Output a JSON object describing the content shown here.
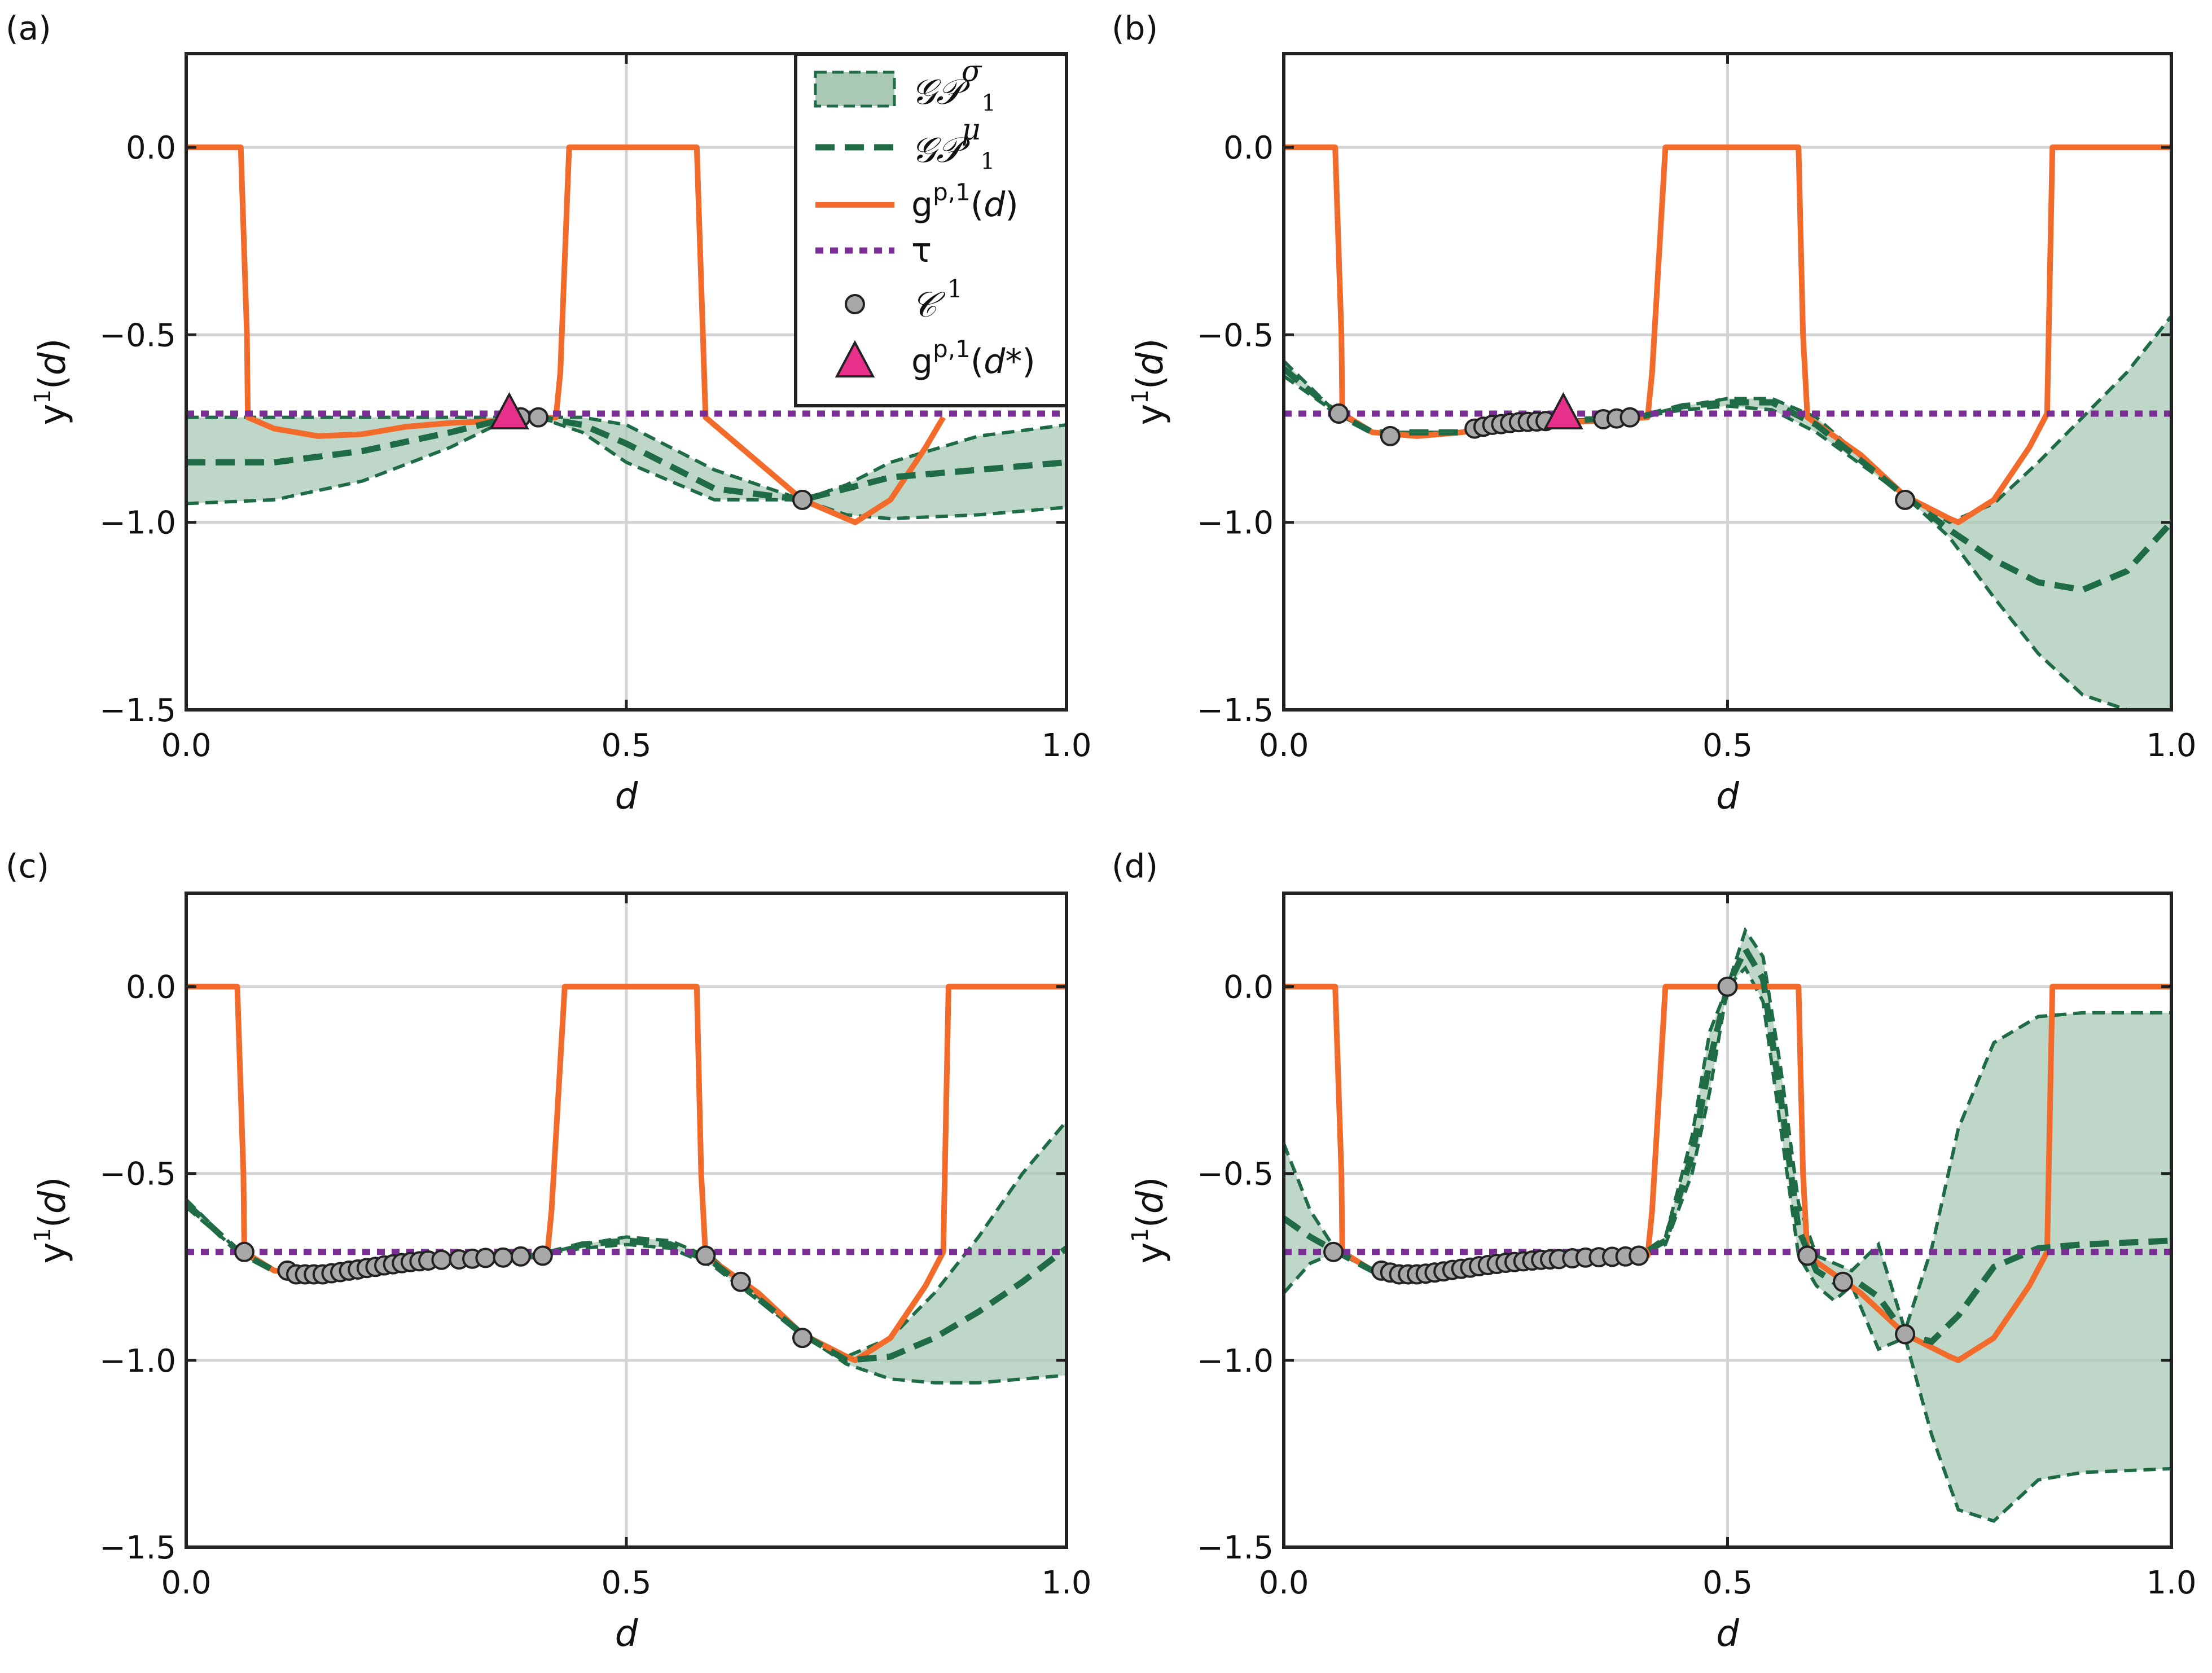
{
  "colors": {
    "band_fill": "#a9c9b6",
    "gp_line": "#1e6b46",
    "true_fn": "#f26b2a",
    "threshold": "#7b2d96",
    "points_fill": "#a8a8a8",
    "optimum_fill": "#e6308a",
    "grid": "#d3d3d3",
    "axes": "#222222"
  },
  "legend": {
    "sigma_label": "𝒢𝒫",
    "sigma_sup": "σ",
    "sigma_sub": "1",
    "mu_label": "𝒢𝒫",
    "mu_sup": "μ",
    "mu_sub": "1",
    "g_base": "g",
    "g_sup": "p,1",
    "g_arg": "(d)",
    "tau_label": "τ",
    "c_label": "𝒞",
    "c_sup": "1",
    "gstar_base": "g",
    "gstar_sup": "p,1",
    "gstar_arg": "(d*)"
  },
  "axes_text": {
    "xlabel": "d",
    "ylabel_base": "y",
    "ylabel_sup": "1",
    "ylabel_arg": "(d)",
    "xticks": [
      "0.0",
      "0.5",
      "1.0"
    ],
    "yticks": [
      "0.0",
      "-0.5",
      "-1.0",
      "-1.5"
    ]
  },
  "chart_data": [
    {
      "panel": "(a)",
      "type": "line",
      "xlim": [
        0,
        1
      ],
      "ylim": [
        -1.5,
        0.25
      ],
      "grid": true,
      "legend": "top-right",
      "true_function": {
        "x": [
          0.0,
          0.062,
          0.069,
          0.07,
          0.1,
          0.15,
          0.2,
          0.25,
          0.3,
          0.35,
          0.42,
          0.425,
          0.435,
          0.58,
          0.59,
          0.6,
          0.65,
          0.7,
          0.75,
          0.76,
          0.8,
          0.84,
          0.86
        ],
        "y": [
          0.0,
          0.0,
          -0.5,
          -0.72,
          -0.75,
          -0.77,
          -0.765,
          -0.745,
          -0.735,
          -0.73,
          -0.72,
          -0.6,
          0.0,
          0.0,
          -0.72,
          -0.74,
          -0.84,
          -0.94,
          -0.99,
          -1.0,
          -0.94,
          -0.8,
          -0.72
        ]
      },
      "threshold": -0.71,
      "gp_mean": {
        "x": [
          0.0,
          0.1,
          0.2,
          0.3,
          0.37,
          0.4,
          0.45,
          0.5,
          0.6,
          0.7,
          0.75,
          0.8,
          0.9,
          1.0
        ],
        "y": [
          -0.84,
          -0.84,
          -0.81,
          -0.76,
          -0.72,
          -0.72,
          -0.74,
          -0.79,
          -0.91,
          -0.94,
          -0.91,
          -0.88,
          -0.86,
          -0.84
        ]
      },
      "gp_upper": {
        "x": [
          0.0,
          0.1,
          0.2,
          0.3,
          0.37,
          0.4,
          0.45,
          0.5,
          0.6,
          0.7,
          0.75,
          0.8,
          0.9,
          1.0
        ],
        "y": [
          -0.72,
          -0.72,
          -0.72,
          -0.72,
          -0.72,
          -0.72,
          -0.72,
          -0.74,
          -0.86,
          -0.94,
          -0.9,
          -0.84,
          -0.77,
          -0.74
        ]
      },
      "gp_lower": {
        "x": [
          0.0,
          0.1,
          0.2,
          0.3,
          0.37,
          0.4,
          0.45,
          0.5,
          0.6,
          0.7,
          0.75,
          0.8,
          0.9,
          1.0
        ],
        "y": [
          -0.95,
          -0.94,
          -0.89,
          -0.8,
          -0.72,
          -0.72,
          -0.76,
          -0.84,
          -0.94,
          -0.94,
          -0.98,
          -0.99,
          -0.98,
          -0.96
        ]
      },
      "samples": {
        "x": [
          0.38,
          0.4,
          0.7
        ],
        "y": [
          -0.72,
          -0.72,
          -0.94
        ]
      },
      "optimum": {
        "x": 0.367,
        "y": -0.71
      }
    },
    {
      "panel": "(b)",
      "type": "line",
      "xlim": [
        0,
        1
      ],
      "ylim": [
        -1.5,
        0.25
      ],
      "grid": true,
      "true_function": {
        "x": [
          0.0,
          0.058,
          0.065,
          0.066,
          0.1,
          0.15,
          0.2,
          0.25,
          0.3,
          0.35,
          0.41,
          0.415,
          0.43,
          0.58,
          0.585,
          0.59,
          0.65,
          0.7,
          0.75,
          0.76,
          0.8,
          0.84,
          0.86,
          0.866,
          1.0
        ],
        "y": [
          0.0,
          0.0,
          -0.5,
          -0.71,
          -0.76,
          -0.77,
          -0.76,
          -0.745,
          -0.735,
          -0.73,
          -0.72,
          -0.6,
          0.0,
          0.0,
          -0.5,
          -0.72,
          -0.82,
          -0.93,
          -0.99,
          -1.0,
          -0.94,
          -0.8,
          -0.71,
          0.0,
          0.0
        ]
      },
      "threshold": -0.71,
      "gp_mean": {
        "x": [
          0.0,
          0.06,
          0.1,
          0.2,
          0.3,
          0.4,
          0.45,
          0.5,
          0.55,
          0.6,
          0.7,
          0.75,
          0.8,
          0.85,
          0.9,
          0.95,
          1.0
        ],
        "y": [
          -0.59,
          -0.71,
          -0.76,
          -0.76,
          -0.73,
          -0.72,
          -0.69,
          -0.68,
          -0.68,
          -0.74,
          -0.93,
          -1.02,
          -1.1,
          -1.16,
          -1.18,
          -1.13,
          -1.0
        ]
      },
      "gp_upper": {
        "x": [
          0.0,
          0.06,
          0.1,
          0.2,
          0.3,
          0.4,
          0.45,
          0.5,
          0.55,
          0.6,
          0.7,
          0.75,
          0.8,
          0.85,
          0.9,
          0.95,
          1.0
        ],
        "y": [
          -0.57,
          -0.71,
          -0.76,
          -0.76,
          -0.73,
          -0.72,
          -0.69,
          -0.67,
          -0.67,
          -0.72,
          -0.93,
          -1.0,
          -0.95,
          -0.84,
          -0.72,
          -0.6,
          -0.45
        ]
      },
      "gp_lower": {
        "x": [
          0.0,
          0.06,
          0.1,
          0.2,
          0.3,
          0.4,
          0.45,
          0.5,
          0.55,
          0.6,
          0.7,
          0.75,
          0.8,
          0.85,
          0.9,
          0.95,
          1.0
        ],
        "y": [
          -0.61,
          -0.71,
          -0.76,
          -0.76,
          -0.73,
          -0.72,
          -0.7,
          -0.69,
          -0.7,
          -0.76,
          -0.93,
          -1.04,
          -1.2,
          -1.35,
          -1.46,
          -1.5,
          -1.5
        ]
      },
      "samples": {
        "x": [
          0.062,
          0.12,
          0.215,
          0.225,
          0.235,
          0.245,
          0.255,
          0.265,
          0.275,
          0.285,
          0.295,
          0.36,
          0.375,
          0.39,
          0.7
        ],
        "y": [
          -0.71,
          -0.77,
          -0.75,
          -0.745,
          -0.74,
          -0.738,
          -0.735,
          -0.733,
          -0.732,
          -0.731,
          -0.73,
          -0.725,
          -0.723,
          -0.72,
          -0.94
        ]
      },
      "optimum": {
        "x": 0.315,
        "y": -0.71
      }
    },
    {
      "panel": "(c)",
      "type": "line",
      "xlim": [
        0,
        1
      ],
      "ylim": [
        -1.5,
        0.25
      ],
      "grid": true,
      "true_function": {
        "x": [
          0.0,
          0.058,
          0.065,
          0.066,
          0.1,
          0.15,
          0.2,
          0.25,
          0.3,
          0.35,
          0.41,
          0.415,
          0.43,
          0.58,
          0.585,
          0.59,
          0.65,
          0.7,
          0.75,
          0.76,
          0.8,
          0.84,
          0.86,
          0.866,
          1.0
        ],
        "y": [
          0.0,
          0.0,
          -0.5,
          -0.71,
          -0.76,
          -0.77,
          -0.76,
          -0.745,
          -0.735,
          -0.73,
          -0.72,
          -0.6,
          0.0,
          0.0,
          -0.5,
          -0.72,
          -0.82,
          -0.93,
          -0.99,
          -1.0,
          -0.94,
          -0.8,
          -0.71,
          0.0,
          0.0
        ]
      },
      "threshold": -0.71,
      "gp_mean": {
        "x": [
          0.0,
          0.06,
          0.1,
          0.2,
          0.3,
          0.4,
          0.45,
          0.5,
          0.55,
          0.6,
          0.7,
          0.75,
          0.8,
          0.85,
          0.9,
          0.95,
          1.0
        ],
        "y": [
          -0.58,
          -0.71,
          -0.76,
          -0.76,
          -0.73,
          -0.72,
          -0.69,
          -0.68,
          -0.69,
          -0.74,
          -0.93,
          -1.0,
          -0.99,
          -0.94,
          -0.87,
          -0.79,
          -0.7
        ]
      },
      "gp_upper": {
        "x": [
          0.0,
          0.06,
          0.1,
          0.2,
          0.3,
          0.4,
          0.45,
          0.5,
          0.55,
          0.6,
          0.7,
          0.75,
          0.8,
          0.85,
          0.9,
          0.95,
          1.0
        ],
        "y": [
          -0.57,
          -0.71,
          -0.76,
          -0.76,
          -0.73,
          -0.72,
          -0.69,
          -0.67,
          -0.68,
          -0.73,
          -0.93,
          -0.99,
          -0.94,
          -0.82,
          -0.67,
          -0.5,
          -0.36
        ]
      },
      "gp_lower": {
        "x": [
          0.0,
          0.06,
          0.1,
          0.2,
          0.3,
          0.4,
          0.45,
          0.5,
          0.55,
          0.6,
          0.7,
          0.75,
          0.8,
          0.85,
          0.9,
          0.95,
          1.0
        ],
        "y": [
          -0.59,
          -0.71,
          -0.76,
          -0.76,
          -0.73,
          -0.72,
          -0.7,
          -0.69,
          -0.7,
          -0.75,
          -0.93,
          -1.01,
          -1.05,
          -1.06,
          -1.06,
          -1.05,
          -1.04
        ]
      },
      "samples": {
        "x": [
          0.066,
          0.115,
          0.125,
          0.135,
          0.145,
          0.155,
          0.165,
          0.175,
          0.185,
          0.195,
          0.205,
          0.215,
          0.225,
          0.235,
          0.245,
          0.255,
          0.265,
          0.275,
          0.29,
          0.31,
          0.325,
          0.34,
          0.36,
          0.38,
          0.405,
          0.59,
          0.63,
          0.7
        ],
        "y": [
          -0.71,
          -0.76,
          -0.77,
          -0.77,
          -0.77,
          -0.77,
          -0.767,
          -0.764,
          -0.76,
          -0.757,
          -0.753,
          -0.75,
          -0.746,
          -0.743,
          -0.74,
          -0.737,
          -0.735,
          -0.733,
          -0.731,
          -0.73,
          -0.728,
          -0.726,
          -0.725,
          -0.722,
          -0.72,
          -0.72,
          -0.79,
          -0.94
        ]
      },
      "optimum": null
    },
    {
      "panel": "(d)",
      "type": "line",
      "xlim": [
        0,
        1
      ],
      "ylim": [
        -1.5,
        0.25
      ],
      "grid": true,
      "true_function": {
        "x": [
          0.0,
          0.058,
          0.065,
          0.066,
          0.1,
          0.15,
          0.2,
          0.25,
          0.3,
          0.35,
          0.41,
          0.415,
          0.43,
          0.58,
          0.585,
          0.59,
          0.65,
          0.7,
          0.75,
          0.76,
          0.8,
          0.84,
          0.86,
          0.866,
          1.0
        ],
        "y": [
          0.0,
          0.0,
          -0.5,
          -0.71,
          -0.76,
          -0.77,
          -0.76,
          -0.745,
          -0.735,
          -0.73,
          -0.72,
          -0.6,
          0.0,
          0.0,
          -0.5,
          -0.72,
          -0.82,
          -0.93,
          -0.99,
          -1.0,
          -0.94,
          -0.8,
          -0.71,
          0.0,
          0.0
        ]
      },
      "threshold": -0.71,
      "gp_mean": {
        "x": [
          0.0,
          0.03,
          0.06,
          0.1,
          0.2,
          0.3,
          0.4,
          0.43,
          0.46,
          0.48,
          0.5,
          0.52,
          0.54,
          0.56,
          0.58,
          0.6,
          0.62,
          0.64,
          0.67,
          0.7,
          0.73,
          0.76,
          0.8,
          0.85,
          0.9,
          1.0
        ],
        "y": [
          -0.62,
          -0.67,
          -0.71,
          -0.76,
          -0.76,
          -0.73,
          -0.72,
          -0.68,
          -0.45,
          -0.2,
          0.0,
          0.1,
          0.02,
          -0.3,
          -0.65,
          -0.76,
          -0.79,
          -0.78,
          -0.83,
          -0.93,
          -0.95,
          -0.88,
          -0.75,
          -0.7,
          -0.69,
          -0.68
        ]
      },
      "gp_upper": {
        "x": [
          0.0,
          0.03,
          0.06,
          0.1,
          0.2,
          0.3,
          0.4,
          0.43,
          0.46,
          0.48,
          0.5,
          0.52,
          0.54,
          0.56,
          0.58,
          0.6,
          0.62,
          0.64,
          0.67,
          0.7,
          0.73,
          0.76,
          0.8,
          0.85,
          0.9,
          1.0
        ],
        "y": [
          -0.42,
          -0.6,
          -0.71,
          -0.76,
          -0.76,
          -0.73,
          -0.72,
          -0.67,
          -0.4,
          -0.12,
          0.0,
          0.15,
          0.08,
          -0.22,
          -0.58,
          -0.72,
          -0.74,
          -0.76,
          -0.69,
          -0.92,
          -0.7,
          -0.38,
          -0.15,
          -0.08,
          -0.07,
          -0.07
        ]
      },
      "gp_lower": {
        "x": [
          0.0,
          0.03,
          0.06,
          0.1,
          0.2,
          0.3,
          0.4,
          0.43,
          0.46,
          0.48,
          0.5,
          0.52,
          0.54,
          0.56,
          0.58,
          0.6,
          0.62,
          0.64,
          0.67,
          0.7,
          0.73,
          0.76,
          0.8,
          0.85,
          0.9,
          1.0
        ],
        "y": [
          -0.82,
          -0.74,
          -0.71,
          -0.76,
          -0.76,
          -0.73,
          -0.72,
          -0.69,
          -0.5,
          -0.28,
          0.0,
          0.05,
          -0.04,
          -0.38,
          -0.72,
          -0.8,
          -0.84,
          -0.8,
          -0.97,
          -0.94,
          -1.2,
          -1.4,
          -1.43,
          -1.32,
          -1.3,
          -1.29
        ]
      },
      "samples": {
        "x": [
          0.056,
          0.11,
          0.12,
          0.13,
          0.14,
          0.15,
          0.16,
          0.17,
          0.18,
          0.19,
          0.2,
          0.21,
          0.22,
          0.23,
          0.24,
          0.25,
          0.26,
          0.27,
          0.28,
          0.29,
          0.3,
          0.31,
          0.325,
          0.34,
          0.355,
          0.37,
          0.385,
          0.4,
          0.5,
          0.59,
          0.63,
          0.7
        ],
        "y": [
          -0.71,
          -0.76,
          -0.765,
          -0.77,
          -0.77,
          -0.77,
          -0.768,
          -0.765,
          -0.762,
          -0.758,
          -0.755,
          -0.752,
          -0.748,
          -0.745,
          -0.742,
          -0.739,
          -0.737,
          -0.735,
          -0.733,
          -0.731,
          -0.73,
          -0.729,
          -0.727,
          -0.725,
          -0.724,
          -0.723,
          -0.722,
          -0.72,
          0.0,
          -0.72,
          -0.79,
          -0.93
        ]
      },
      "optimum": null
    }
  ]
}
